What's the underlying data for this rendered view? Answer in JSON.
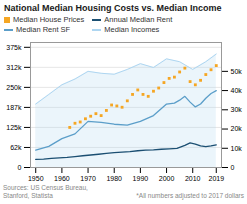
{
  "chart_data": {
    "type": "line",
    "title": "National Median Housing Costs vs. Median Income",
    "xlim": [
      1948,
      2021
    ],
    "xticks": [
      1950,
      1960,
      1970,
      1980,
      1990,
      2000,
      2010,
      2019
    ],
    "ylim": [
      0,
      390000
    ],
    "yticks": [
      0,
      {
        "value": 62500,
        "label": "62k"
      },
      {
        "value": 125000,
        "label": "125k"
      },
      {
        "value": 187500,
        "label": "187k"
      },
      {
        "value": 250000,
        "label": "250k"
      },
      {
        "value": 312500,
        "label": "312k"
      },
      {
        "value": 375000,
        "label": "375k"
      }
    ],
    "y2lim": [
      0,
      65000
    ],
    "y2ticks": [
      0,
      {
        "value": 10000,
        "label": "10k"
      },
      {
        "value": 20000,
        "label": "20k"
      },
      {
        "value": 30000,
        "label": "30k"
      },
      {
        "value": 40000,
        "label": "40k"
      },
      {
        "value": 50000,
        "label": "50k"
      }
    ],
    "grid": true,
    "legend": "upper left",
    "annotations": [
      "Sources: US Census Bureau,\nStanford, Statista",
      "*All numbers adjusted to 2017 dollars"
    ],
    "series": [
      {
        "name": "Median House Prices",
        "type": "scatter",
        "marker": "square",
        "color": "#f5a623",
        "x": [
          1963,
          1965,
          1967,
          1969,
          1971,
          1973,
          1975,
          1977,
          1979,
          1981,
          1983,
          1985,
          1987,
          1989,
          1991,
          1993,
          1995,
          1997,
          1999,
          2001,
          2003,
          2005,
          2007,
          2009,
          2011,
          2013,
          2015,
          2017,
          2019
        ],
        "values": [
          125000,
          138000,
          142000,
          152000,
          160000,
          168000,
          162000,
          178000,
          195000,
          192000,
          188000,
          208000,
          228000,
          242000,
          228000,
          222000,
          238000,
          248000,
          265000,
          278000,
          282000,
          298000,
          310000,
          268000,
          258000,
          272000,
          290000,
          305000,
          318000
        ]
      },
      {
        "name": "Annual Median Rent",
        "type": "line",
        "axis": "y2",
        "color": "#1b4f72",
        "x": [
          1950,
          1953,
          1956,
          1959,
          1962,
          1965,
          1968,
          1971,
          1974,
          1977,
          1980,
          1983,
          1986,
          1989,
          1992,
          1995,
          1998,
          2001,
          2004,
          2007,
          2009,
          2011,
          2013,
          2015,
          2017,
          2019
        ],
        "values": [
          4200,
          4400,
          4700,
          5000,
          5300,
          5700,
          6100,
          6500,
          6900,
          7300,
          7700,
          8000,
          8300,
          8700,
          9000,
          9200,
          9500,
          9700,
          9900,
          11500,
          12800,
          12200,
          11200,
          10800,
          11200,
          11800
        ]
      },
      {
        "name": "Median Rent SF",
        "type": "line",
        "axis": "y2",
        "color": "#5b9ec9",
        "x": [
          1950,
          1955,
          1960,
          1965,
          1970,
          1975,
          1980,
          1985,
          1990,
          1995,
          2000,
          2003,
          2005,
          2007,
          2009,
          2011,
          2013,
          2015,
          2017,
          2019
        ],
        "values": [
          9000,
          11000,
          15000,
          17500,
          24000,
          23500,
          22500,
          22000,
          24000,
          27000,
          33000,
          33500,
          35000,
          37000,
          34000,
          31500,
          33000,
          36000,
          38500,
          40000
        ]
      },
      {
        "name": "Median Incomes",
        "type": "area",
        "axis": "y2",
        "color": "#aed6f1",
        "x": [
          1950,
          1955,
          1960,
          1965,
          1970,
          1975,
          1980,
          1985,
          1990,
          1995,
          2000,
          2005,
          2010,
          2015,
          2019
        ],
        "values": [
          33000,
          38000,
          43000,
          46000,
          50000,
          49000,
          48500,
          51000,
          54000,
          52000,
          56500,
          55000,
          51000,
          55000,
          59000
        ]
      }
    ]
  }
}
